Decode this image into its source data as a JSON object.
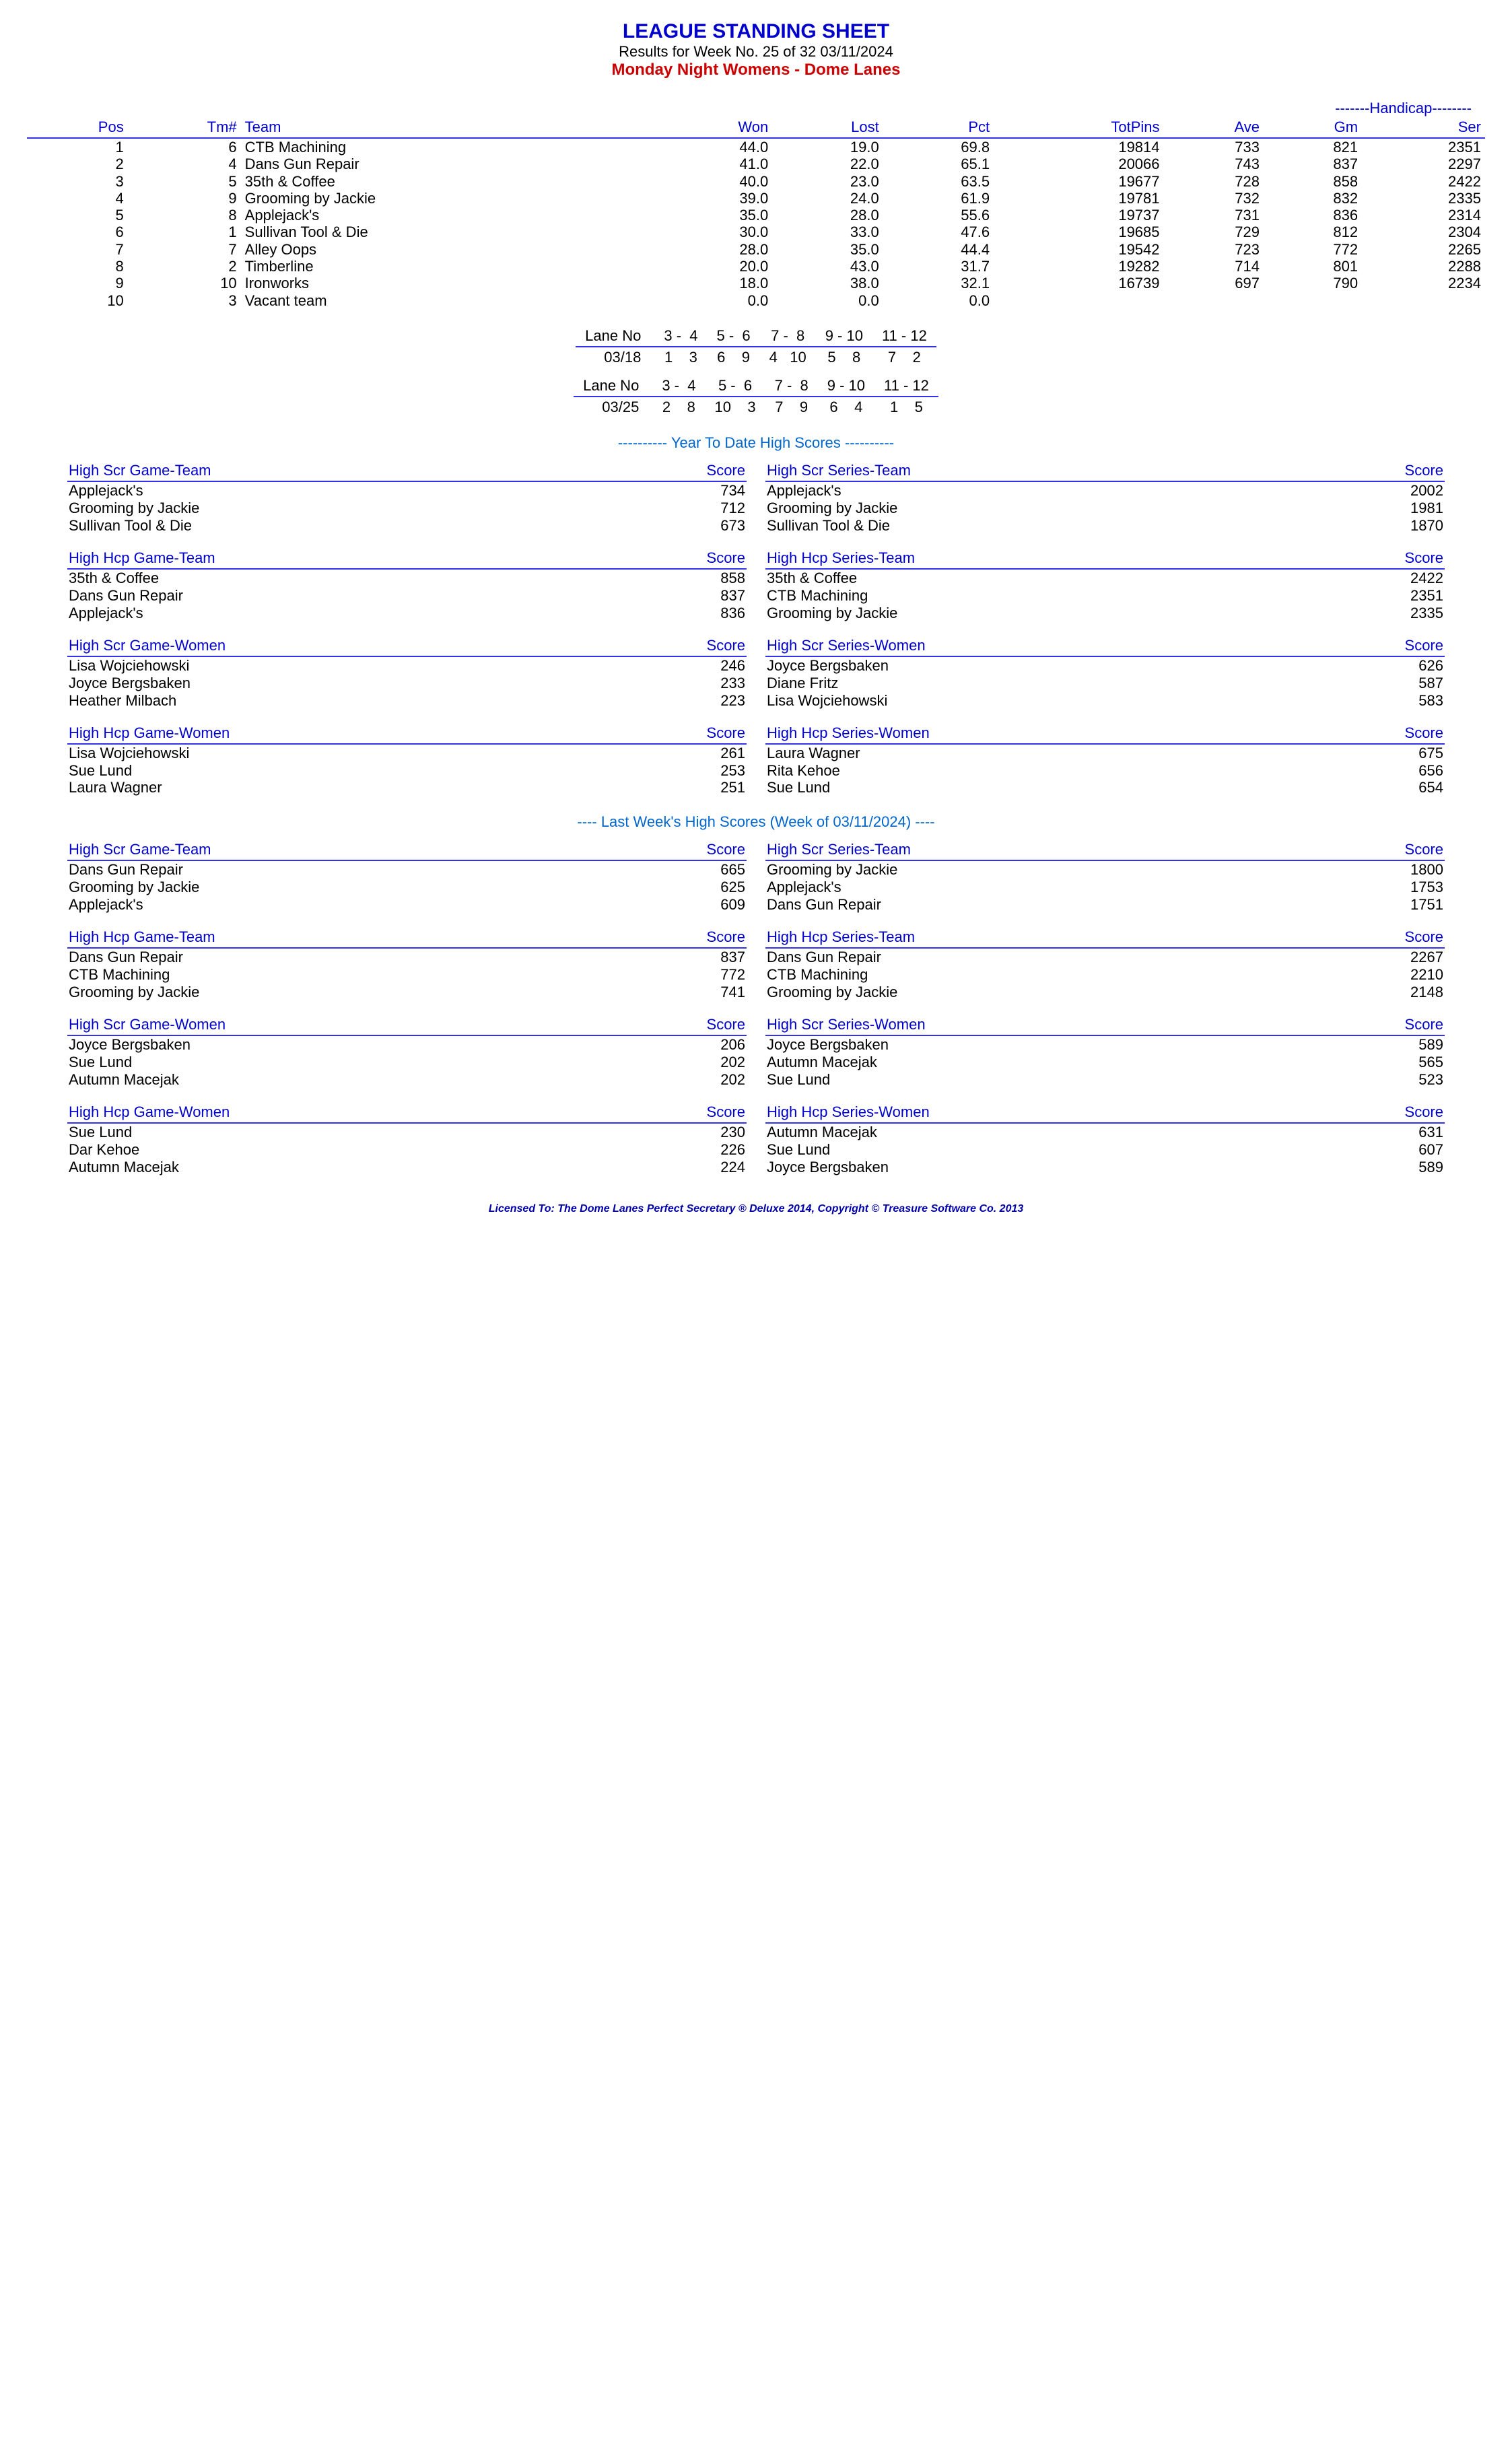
{
  "header": {
    "title": "LEAGUE STANDING SHEET",
    "subtitle": "Results for Week No. 25 of 32    03/11/2024",
    "league": "Monday Night Womens - Dome Lanes"
  },
  "handicap_label": "-------Handicap--------",
  "standings": {
    "columns": [
      "Pos",
      "Tm#",
      "Team",
      "Won",
      "Lost",
      "Pct",
      "TotPins",
      "Ave",
      "Gm",
      "Ser"
    ],
    "rows": [
      [
        "1",
        "6",
        "CTB Machining",
        "44.0",
        "19.0",
        "69.8",
        "19814",
        "733",
        "821",
        "2351"
      ],
      [
        "2",
        "4",
        "Dans Gun Repair",
        "41.0",
        "22.0",
        "65.1",
        "20066",
        "743",
        "837",
        "2297"
      ],
      [
        "3",
        "5",
        "35th & Coffee",
        "40.0",
        "23.0",
        "63.5",
        "19677",
        "728",
        "858",
        "2422"
      ],
      [
        "4",
        "9",
        "Grooming by Jackie",
        "39.0",
        "24.0",
        "61.9",
        "19781",
        "732",
        "832",
        "2335"
      ],
      [
        "5",
        "8",
        "Applejack's",
        "35.0",
        "28.0",
        "55.6",
        "19737",
        "731",
        "836",
        "2314"
      ],
      [
        "6",
        "1",
        "Sullivan Tool & Die",
        "30.0",
        "33.0",
        "47.6",
        "19685",
        "729",
        "812",
        "2304"
      ],
      [
        "7",
        "7",
        "Alley Oops",
        "28.0",
        "35.0",
        "44.4",
        "19542",
        "723",
        "772",
        "2265"
      ],
      [
        "8",
        "2",
        "Timberline",
        "20.0",
        "43.0",
        "31.7",
        "19282",
        "714",
        "801",
        "2288"
      ],
      [
        "9",
        "10",
        "Ironworks",
        "18.0",
        "38.0",
        "32.1",
        "16739",
        "697",
        "790",
        "2234"
      ],
      [
        "10",
        "3",
        "Vacant team",
        "0.0",
        "0.0",
        "0.0",
        "",
        "",
        "",
        ""
      ]
    ]
  },
  "lanes": [
    {
      "lane_label": "Lane No",
      "lanes": [
        "3 -  4",
        "5 -  6",
        "7 -  8",
        "9 - 10",
        "11 - 12"
      ],
      "date": "03/18",
      "assign": [
        "1    3",
        "6    9",
        "4   10",
        "5    8",
        "7    2"
      ]
    },
    {
      "lane_label": "Lane No",
      "lanes": [
        "3 -  4",
        "5 -  6",
        "7 -  8",
        "9 - 10",
        "11 - 12"
      ],
      "date": "03/25",
      "assign": [
        "2    8",
        "10    3",
        "7    9",
        "6    4",
        "1    5"
      ]
    }
  ],
  "ytd_title": "----------  Year To Date High Scores  ----------",
  "ytd": [
    {
      "title": "High Scr Game-Team",
      "score_label": "Score",
      "rows": [
        [
          "Applejack's",
          "734"
        ],
        [
          "Grooming by Jackie",
          "712"
        ],
        [
          "Sullivan Tool & Die",
          "673"
        ]
      ]
    },
    {
      "title": "High Scr Series-Team",
      "score_label": "Score",
      "rows": [
        [
          "Applejack's",
          "2002"
        ],
        [
          "Grooming by Jackie",
          "1981"
        ],
        [
          "Sullivan Tool & Die",
          "1870"
        ]
      ]
    },
    {
      "title": "High Hcp Game-Team",
      "score_label": "Score",
      "rows": [
        [
          "35th & Coffee",
          "858"
        ],
        [
          "Dans Gun Repair",
          "837"
        ],
        [
          "Applejack's",
          "836"
        ]
      ]
    },
    {
      "title": "High Hcp Series-Team",
      "score_label": "Score",
      "rows": [
        [
          "35th & Coffee",
          "2422"
        ],
        [
          "CTB Machining",
          "2351"
        ],
        [
          "Grooming by Jackie",
          "2335"
        ]
      ]
    },
    {
      "title": "High Scr Game-Women",
      "score_label": "Score",
      "rows": [
        [
          "Lisa Wojciehowski",
          "246"
        ],
        [
          "Joyce Bergsbaken",
          "233"
        ],
        [
          "Heather Milbach",
          "223"
        ]
      ]
    },
    {
      "title": "High Scr Series-Women",
      "score_label": "Score",
      "rows": [
        [
          "Joyce Bergsbaken",
          "626"
        ],
        [
          "Diane Fritz",
          "587"
        ],
        [
          "Lisa Wojciehowski",
          "583"
        ]
      ]
    },
    {
      "title": "High Hcp Game-Women",
      "score_label": "Score",
      "rows": [
        [
          "Lisa Wojciehowski",
          "261"
        ],
        [
          "Sue Lund",
          "253"
        ],
        [
          "Laura Wagner",
          "251"
        ]
      ]
    },
    {
      "title": "High Hcp Series-Women",
      "score_label": "Score",
      "rows": [
        [
          "Laura Wagner",
          "675"
        ],
        [
          "Rita Kehoe",
          "656"
        ],
        [
          "Sue Lund",
          "654"
        ]
      ]
    }
  ],
  "lw_title": "----   Last Week's High Scores   (Week of 03/11/2024)   ----",
  "lw": [
    {
      "title": "High Scr Game-Team",
      "score_label": "Score",
      "rows": [
        [
          "Dans Gun Repair",
          "665"
        ],
        [
          "Grooming by Jackie",
          "625"
        ],
        [
          "Applejack's",
          "609"
        ]
      ]
    },
    {
      "title": "High Scr Series-Team",
      "score_label": "Score",
      "rows": [
        [
          "Grooming by Jackie",
          "1800"
        ],
        [
          "Applejack's",
          "1753"
        ],
        [
          "Dans Gun Repair",
          "1751"
        ]
      ]
    },
    {
      "title": "High Hcp Game-Team",
      "score_label": "Score",
      "rows": [
        [
          "Dans Gun Repair",
          "837"
        ],
        [
          "CTB Machining",
          "772"
        ],
        [
          "Grooming by Jackie",
          "741"
        ]
      ]
    },
    {
      "title": "High Hcp Series-Team",
      "score_label": "Score",
      "rows": [
        [
          "Dans Gun Repair",
          "2267"
        ],
        [
          "CTB Machining",
          "2210"
        ],
        [
          "Grooming by Jackie",
          "2148"
        ]
      ]
    },
    {
      "title": "High Scr Game-Women",
      "score_label": "Score",
      "rows": [
        [
          "Joyce Bergsbaken",
          "206"
        ],
        [
          "Sue Lund",
          "202"
        ],
        [
          "Autumn Macejak",
          "202"
        ]
      ]
    },
    {
      "title": "High Scr Series-Women",
      "score_label": "Score",
      "rows": [
        [
          "Joyce Bergsbaken",
          "589"
        ],
        [
          "Autumn Macejak",
          "565"
        ],
        [
          "Sue Lund",
          "523"
        ]
      ]
    },
    {
      "title": "High Hcp Game-Women",
      "score_label": "Score",
      "rows": [
        [
          "Sue Lund",
          "230"
        ],
        [
          "Dar Kehoe",
          "226"
        ],
        [
          "Autumn Macejak",
          "224"
        ]
      ]
    },
    {
      "title": "High Hcp Series-Women",
      "score_label": "Score",
      "rows": [
        [
          "Autumn Macejak",
          "631"
        ],
        [
          "Sue Lund",
          "607"
        ],
        [
          "Joyce Bergsbaken",
          "589"
        ]
      ]
    }
  ],
  "footer": "Licensed To: The Dome Lanes    Perfect Secretary ® Deluxe  2014, Copyright © Treasure Software Co. 2013"
}
